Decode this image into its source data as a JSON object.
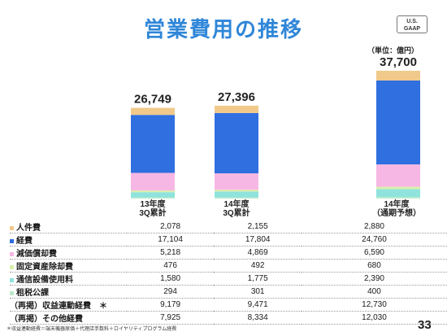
{
  "title": "営業費用の推移",
  "badge": {
    "line1": "U.S.",
    "line2": "GAAP"
  },
  "unit_note": "（単位：億円）",
  "page_number": "33",
  "footnote": "＊収益連動経費＝端末機器原価＋代理店手数料＋ロイヤリティプログラム経費",
  "columns": [
    {
      "line1": "13年度",
      "line2": "3Q累計"
    },
    {
      "line1": "14年度",
      "line2": "3Q累計"
    },
    {
      "line1": "14年度",
      "line2": "（通期予想）"
    }
  ],
  "chart_data": {
    "type": "bar",
    "stacked": true,
    "categories": [
      "13年度 3Q累計",
      "14年度 3Q累計",
      "14年度（通期予想）"
    ],
    "totals": [
      "26,749",
      "27,396",
      "37,700"
    ],
    "total_values": [
      26749,
      27396,
      37700
    ],
    "series": [
      {
        "name": "人件費",
        "color": "#f1c98a",
        "values": [
          2078,
          2155,
          2880
        ]
      },
      {
        "name": "経費",
        "color": "#2f6fe0",
        "values": [
          17104,
          17804,
          24760
        ]
      },
      {
        "name": "減価償却費",
        "color": "#f7b7e4",
        "values": [
          5218,
          4869,
          6590
        ]
      },
      {
        "name": "固定資産除却費",
        "color": "#d9f0a8",
        "values": [
          476,
          492,
          680
        ]
      },
      {
        "name": "通信設備使用料",
        "color": "#8fe3dc",
        "values": [
          1580,
          1775,
          2390
        ]
      },
      {
        "name": "租税公課",
        "color": "#bfe9c9",
        "values": [
          294,
          301,
          400
        ]
      }
    ],
    "ylim": [
      0,
      40000
    ]
  },
  "table": {
    "rows": [
      {
        "label": "人件費",
        "color": "#f1c98a",
        "values": [
          "2,078",
          "2,155",
          "2,880"
        ]
      },
      {
        "label": "経費",
        "color": "#2f6fe0",
        "values": [
          "17,104",
          "17,804",
          "24,760"
        ]
      },
      {
        "label": "減価償却費",
        "color": "#f7b7e4",
        "values": [
          "5,218",
          "4,869",
          "6,590"
        ]
      },
      {
        "label": "固定資産除却費",
        "color": "#d9f0a8",
        "values": [
          "476",
          "492",
          "680"
        ]
      },
      {
        "label": "通信設備使用料",
        "color": "#8fe3dc",
        "values": [
          "1,580",
          "1,775",
          "2,390"
        ]
      },
      {
        "label": "租税公課",
        "color": "#bfe9c9",
        "values": [
          "294",
          "301",
          "400"
        ]
      },
      {
        "label": "（再掲）収益連動経費　＊",
        "color": "",
        "values": [
          "9,179",
          "9,471",
          "12,730"
        ]
      },
      {
        "label": "（再掲）その他経費",
        "color": "",
        "values": [
          "7,925",
          "8,334",
          "12,030"
        ]
      }
    ]
  }
}
